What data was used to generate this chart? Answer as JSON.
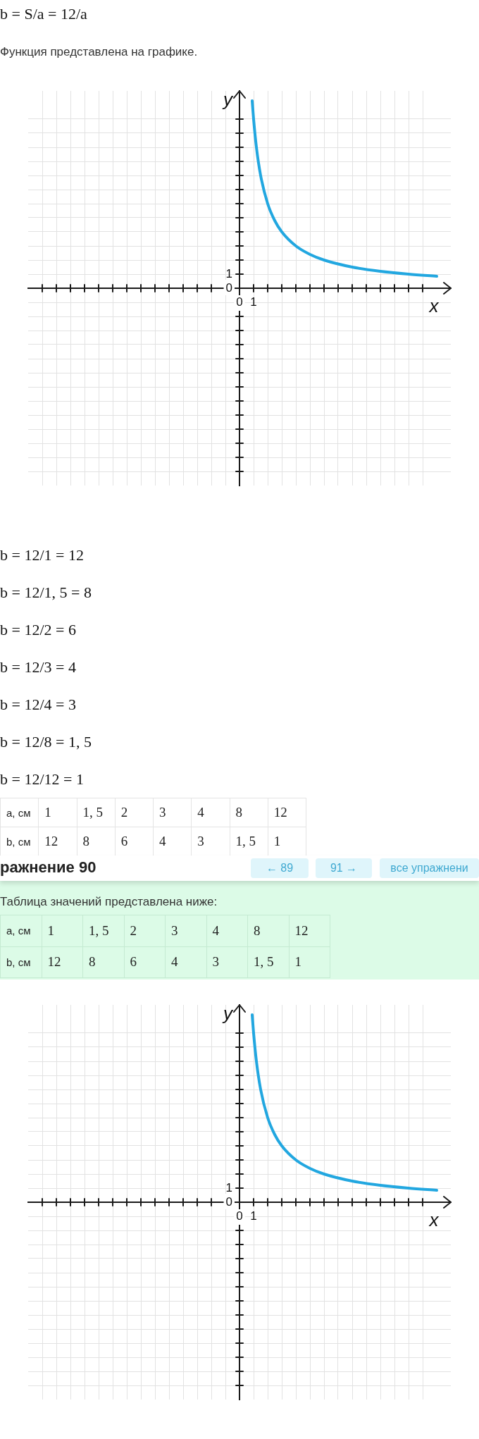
{
  "chart_data": [
    {
      "type": "other",
      "annotations": [
        "b = S/a = 12/a",
        "Функция представлена на графике."
      ]
    },
    {
      "type": "line",
      "xlabel": "x",
      "ylabel": "y",
      "x": [
        0.9,
        1,
        1.2,
        1.5,
        2,
        2.5,
        3,
        4,
        5,
        6,
        8,
        10,
        12,
        14
      ],
      "series": [
        {
          "color": "#22a7e0",
          "values": [
            13.3,
            12,
            10,
            8,
            6,
            4.8,
            4,
            3,
            2.4,
            2,
            1.5,
            1.2,
            1,
            0.85
          ]
        }
      ],
      "xlim": [
        -15,
        15
      ],
      "ylim": [
        -14,
        14
      ],
      "xticks": [
        {
          "value": -14,
          "label": null
        },
        {
          "value": -13,
          "label": null
        },
        {
          "value": -12,
          "label": null
        },
        {
          "value": -11,
          "label": null
        },
        {
          "value": -10,
          "label": null
        },
        {
          "value": -9,
          "label": null
        },
        {
          "value": -8,
          "label": null
        },
        {
          "value": -7,
          "label": null
        },
        {
          "value": -6,
          "label": null
        },
        {
          "value": -5,
          "label": null
        },
        {
          "value": -4,
          "label": null
        },
        {
          "value": -3,
          "label": null
        },
        {
          "value": -2,
          "label": null
        },
        {
          "value": -1,
          "label": null
        },
        {
          "value": 0,
          "label": "0"
        },
        {
          "value": 1,
          "label": "1"
        },
        {
          "value": 2,
          "label": null
        },
        {
          "value": 3,
          "label": null
        },
        {
          "value": 4,
          "label": null
        },
        {
          "value": 5,
          "label": null
        },
        {
          "value": 6,
          "label": null
        },
        {
          "value": 7,
          "label": null
        },
        {
          "value": 8,
          "label": null
        },
        {
          "value": 9,
          "label": null
        },
        {
          "value": 10,
          "label": null
        },
        {
          "value": 11,
          "label": null
        },
        {
          "value": 12,
          "label": null
        },
        {
          "value": 13,
          "label": null
        }
      ],
      "yticks": [
        {
          "value": -13,
          "label": null
        },
        {
          "value": -12,
          "label": null
        },
        {
          "value": -11,
          "label": null
        },
        {
          "value": -10,
          "label": null
        },
        {
          "value": -9,
          "label": null
        },
        {
          "value": -8,
          "label": null
        },
        {
          "value": -7,
          "label": null
        },
        {
          "value": -6,
          "label": null
        },
        {
          "value": -5,
          "label": null
        },
        {
          "value": -4,
          "label": null
        },
        {
          "value": -3,
          "label": null
        },
        {
          "value": -2,
          "label": null
        },
        {
          "value": -1,
          "label": null
        },
        {
          "value": 0,
          "label": "0"
        },
        {
          "value": 1,
          "label": "1"
        },
        {
          "value": 2,
          "label": null
        },
        {
          "value": 3,
          "label": null
        },
        {
          "value": 4,
          "label": null
        },
        {
          "value": 5,
          "label": null
        },
        {
          "value": 6,
          "label": null
        },
        {
          "value": 7,
          "label": null
        },
        {
          "value": 8,
          "label": null
        },
        {
          "value": 9,
          "label": null
        },
        {
          "value": 10,
          "label": null
        },
        {
          "value": 11,
          "label": null
        },
        {
          "value": 12,
          "label": null
        }
      ],
      "grid": true
    },
    {
      "type": "other",
      "annotations": [
        "b = 12/1 = 12",
        "b = 12/1, 5 = 8",
        "b = 12/2 = 6",
        "b = 12/3 = 4",
        "b = 12/4 = 3",
        "b = 12/8 = 1, 5",
        "b = 12/12 = 1",
        "a, см",
        "1",
        "1, 5",
        "2",
        "3",
        "4",
        "8",
        "12",
        "b, см",
        "12",
        "8",
        "6",
        "4",
        "3",
        "1, 5",
        "1"
      ]
    },
    {
      "type": "other",
      "title": "ражнение 90",
      "annotations": [
        "← 89",
        "91 →",
        "все упражнени"
      ]
    },
    {
      "type": "other",
      "annotations": [
        "Таблица значений представлена ниже:",
        "a, см",
        "1",
        "1, 5",
        "2",
        "3",
        "4",
        "8",
        "12",
        "b, см",
        "12",
        "8",
        "6",
        "4",
        "3",
        "1, 5",
        "1"
      ]
    },
    {
      "type": "line",
      "xlabel": "x",
      "ylabel": "y",
      "x": [
        0.9,
        1,
        1.2,
        1.5,
        2,
        2.5,
        3,
        4,
        5,
        6,
        8,
        10,
        12,
        14
      ],
      "series": [
        {
          "color": "#22a7e0",
          "values": [
            13.3,
            12,
            10,
            8,
            6,
            4.8,
            4,
            3,
            2.4,
            2,
            1.5,
            1.2,
            1,
            0.85
          ]
        }
      ],
      "xlim": [
        -15,
        15
      ],
      "ylim": [
        -14,
        14
      ],
      "xticks": [
        {
          "value": -14,
          "label": null
        },
        {
          "value": -13,
          "label": null
        },
        {
          "value": -12,
          "label": null
        },
        {
          "value": -11,
          "label": null
        },
        {
          "value": -10,
          "label": null
        },
        {
          "value": -9,
          "label": null
        },
        {
          "value": -8,
          "label": null
        },
        {
          "value": -7,
          "label": null
        },
        {
          "value": -6,
          "label": null
        },
        {
          "value": -5,
          "label": null
        },
        {
          "value": -4,
          "label": null
        },
        {
          "value": -3,
          "label": null
        },
        {
          "value": -2,
          "label": null
        },
        {
          "value": -1,
          "label": null
        },
        {
          "value": 0,
          "label": "0"
        },
        {
          "value": 1,
          "label": "1"
        },
        {
          "value": 2,
          "label": null
        },
        {
          "value": 3,
          "label": null
        },
        {
          "value": 4,
          "label": null
        },
        {
          "value": 5,
          "label": null
        },
        {
          "value": 6,
          "label": null
        },
        {
          "value": 7,
          "label": null
        },
        {
          "value": 8,
          "label": null
        },
        {
          "value": 9,
          "label": null
        },
        {
          "value": 10,
          "label": null
        },
        {
          "value": 11,
          "label": null
        },
        {
          "value": 12,
          "label": null
        },
        {
          "value": 13,
          "label": null
        }
      ],
      "yticks": [
        {
          "value": -13,
          "label": null
        },
        {
          "value": -12,
          "label": null
        },
        {
          "value": -11,
          "label": null
        },
        {
          "value": -10,
          "label": null
        },
        {
          "value": -9,
          "label": null
        },
        {
          "value": -8,
          "label": null
        },
        {
          "value": -7,
          "label": null
        },
        {
          "value": -6,
          "label": null
        },
        {
          "value": -5,
          "label": null
        },
        {
          "value": -4,
          "label": null
        },
        {
          "value": -3,
          "label": null
        },
        {
          "value": -2,
          "label": null
        },
        {
          "value": -1,
          "label": null
        },
        {
          "value": 0,
          "label": "0"
        },
        {
          "value": 1,
          "label": "1"
        },
        {
          "value": 2,
          "label": null
        },
        {
          "value": 3,
          "label": null
        },
        {
          "value": 4,
          "label": null
        },
        {
          "value": 5,
          "label": null
        },
        {
          "value": 6,
          "label": null
        },
        {
          "value": 7,
          "label": null
        },
        {
          "value": 8,
          "label": null
        },
        {
          "value": 9,
          "label": null
        },
        {
          "value": 10,
          "label": null
        },
        {
          "value": 11,
          "label": null
        },
        {
          "value": 12,
          "label": null
        }
      ],
      "grid": true
    }
  ]
}
